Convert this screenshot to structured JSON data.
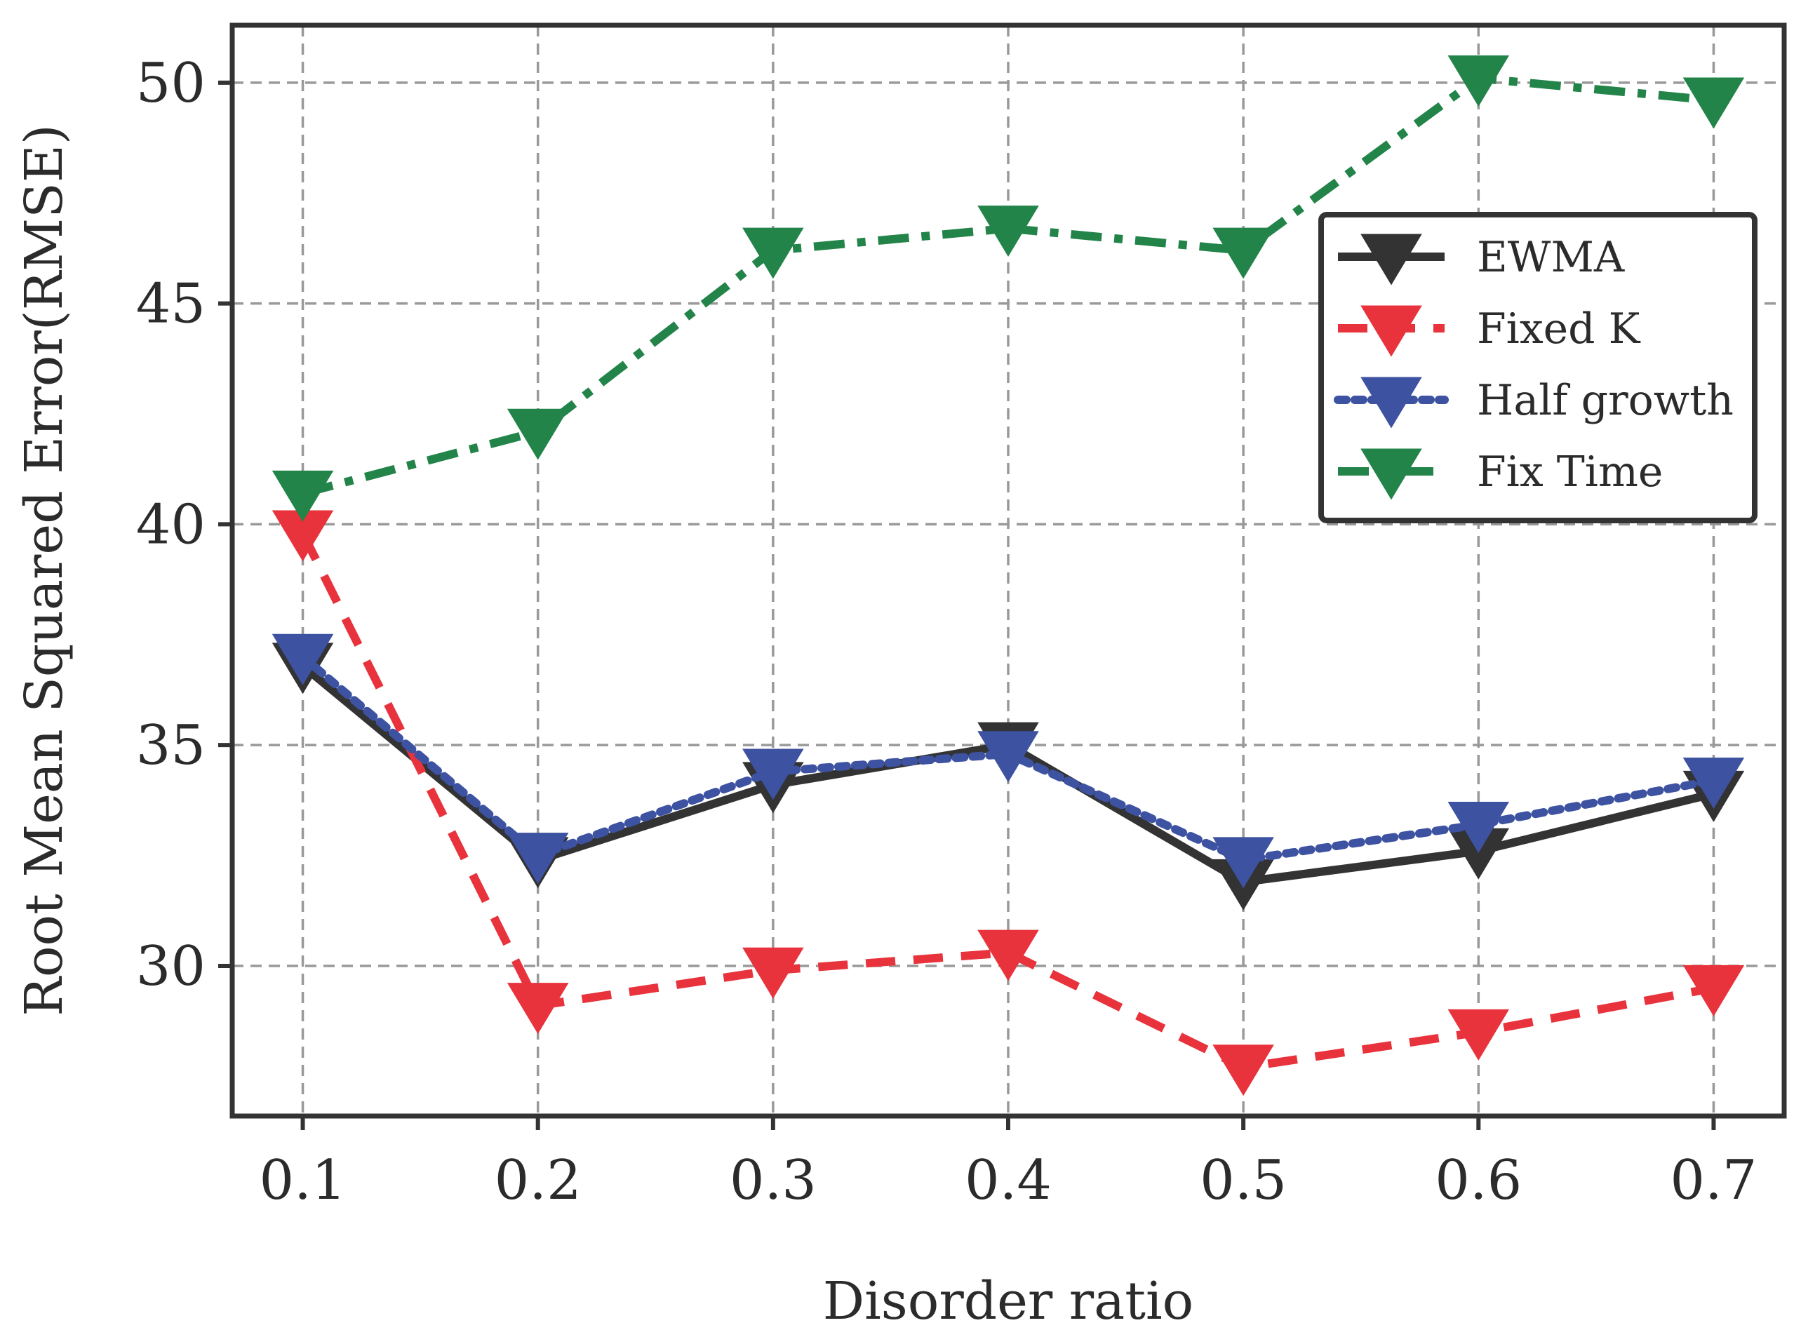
{
  "chart_data": {
    "type": "line",
    "title": "",
    "xlabel": "Disorder ratio",
    "ylabel": "Root Mean Squared Error(RMSE)",
    "x": [
      0.1,
      0.2,
      0.3,
      0.4,
      0.5,
      0.6,
      0.7
    ],
    "x_tick_labels": [
      "0.1",
      "0.2",
      "0.3",
      "0.4",
      "0.5",
      "0.6",
      "0.7"
    ],
    "xlim": [
      0.07,
      0.73
    ],
    "ylim": [
      26.6,
      51.3
    ],
    "y_ticks": [
      30,
      35,
      40,
      45,
      50
    ],
    "y_tick_labels": [
      "30",
      "35",
      "40",
      "45",
      "50"
    ],
    "grid": true,
    "legend_position": "upper-right",
    "marker": "triangle-down",
    "series": [
      {
        "name": "EWMA",
        "color": "#333333",
        "linestyle": "solid",
        "values": [
          36.8,
          32.4,
          34.1,
          35.0,
          31.9,
          32.6,
          33.9
        ]
      },
      {
        "name": "Fixed K",
        "color": "#e8323c",
        "linestyle": "dashed",
        "values": [
          39.8,
          29.1,
          29.9,
          30.3,
          27.7,
          28.5,
          29.5
        ]
      },
      {
        "name": "Half growth",
        "color": "#3d52a1",
        "linestyle": "dotted",
        "values": [
          37.0,
          32.5,
          34.4,
          34.8,
          32.4,
          33.2,
          34.2
        ]
      },
      {
        "name": "Fix Time",
        "color": "#23844a",
        "linestyle": "dashdot",
        "values": [
          40.7,
          42.1,
          46.2,
          46.7,
          46.2,
          50.1,
          49.6
        ]
      }
    ]
  }
}
